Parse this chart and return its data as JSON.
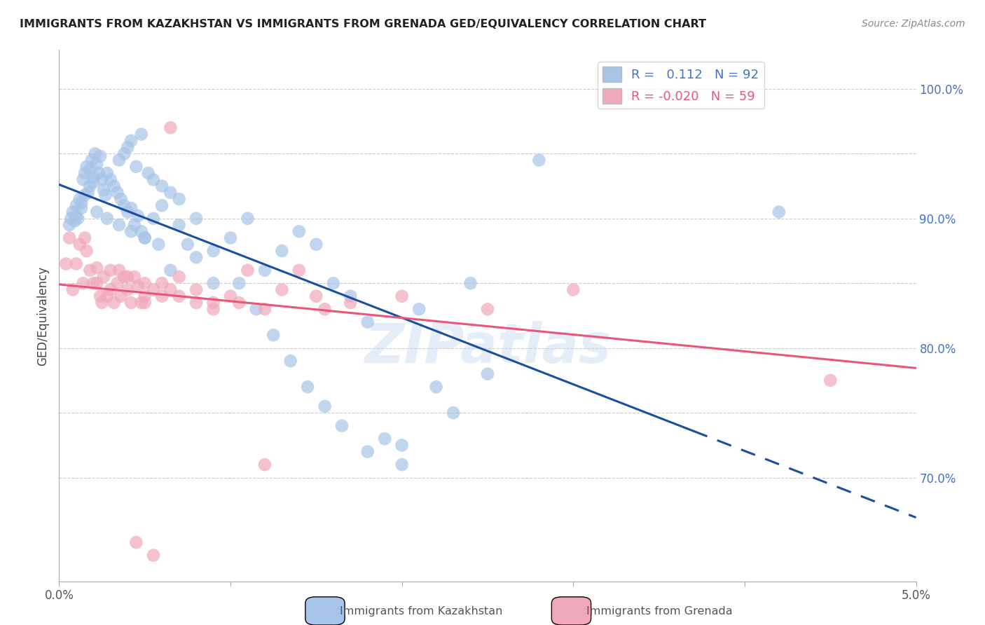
{
  "title": "IMMIGRANTS FROM KAZAKHSTAN VS IMMIGRANTS FROM GRENADA GED/EQUIVALENCY CORRELATION CHART",
  "source": "Source: ZipAtlas.com",
  "ylabel": "GED/Equivalency",
  "watermark": "ZIPatlas",
  "blue_color": "#a8c4e8",
  "pink_color": "#f0a8bb",
  "blue_line_color": "#1a4fa0",
  "pink_line_color": "#e8567a",
  "background_color": "#ffffff",
  "R_blue": 0.112,
  "N_blue": 92,
  "R_pink": -0.02,
  "N_pink": 59,
  "xmin": 0.0,
  "xmax": 5.0,
  "ymin": 62.0,
  "ymax": 103.0,
  "blue_scatter_x": [
    0.06,
    0.07,
    0.08,
    0.09,
    0.1,
    0.1,
    0.11,
    0.12,
    0.13,
    0.13,
    0.14,
    0.15,
    0.15,
    0.16,
    0.17,
    0.18,
    0.18,
    0.19,
    0.2,
    0.2,
    0.21,
    0.22,
    0.23,
    0.24,
    0.25,
    0.26,
    0.27,
    0.28,
    0.3,
    0.32,
    0.34,
    0.36,
    0.38,
    0.4,
    0.42,
    0.44,
    0.46,
    0.48,
    0.5,
    0.55,
    0.6,
    0.65,
    0.7,
    0.75,
    0.8,
    0.9,
    1.0,
    1.1,
    1.2,
    1.3,
    1.4,
    1.5,
    1.6,
    1.7,
    1.8,
    1.9,
    2.0,
    2.1,
    2.2,
    2.3,
    2.4,
    2.5,
    0.35,
    0.38,
    0.4,
    0.42,
    0.45,
    0.48,
    0.52,
    0.55,
    0.6,
    0.65,
    0.7,
    0.8,
    0.9,
    1.05,
    1.15,
    1.25,
    1.35,
    1.45,
    1.55,
    1.65,
    1.8,
    2.0,
    2.8,
    4.2,
    0.22,
    0.28,
    0.35,
    0.42,
    0.5,
    0.58
  ],
  "blue_scatter_y": [
    89.5,
    90.0,
    90.5,
    89.8,
    91.0,
    90.2,
    90.0,
    91.5,
    90.8,
    91.2,
    93.0,
    91.8,
    93.5,
    94.0,
    92.0,
    92.5,
    93.8,
    94.5,
    92.8,
    93.2,
    95.0,
    94.2,
    93.5,
    94.8,
    93.0,
    92.2,
    91.8,
    93.5,
    93.0,
    92.5,
    92.0,
    91.5,
    91.0,
    90.5,
    90.8,
    89.5,
    90.2,
    89.0,
    88.5,
    90.0,
    91.0,
    86.0,
    89.5,
    88.0,
    87.0,
    85.0,
    88.5,
    90.0,
    86.0,
    87.5,
    89.0,
    88.0,
    85.0,
    84.0,
    82.0,
    73.0,
    72.5,
    83.0,
    77.0,
    75.0,
    85.0,
    78.0,
    94.5,
    95.0,
    95.5,
    96.0,
    94.0,
    96.5,
    93.5,
    93.0,
    92.5,
    92.0,
    91.5,
    90.0,
    87.5,
    85.0,
    83.0,
    81.0,
    79.0,
    77.0,
    75.5,
    74.0,
    72.0,
    71.0,
    94.5,
    90.5,
    90.5,
    90.0,
    89.5,
    89.0,
    88.5,
    88.0
  ],
  "pink_scatter_x": [
    0.04,
    0.06,
    0.08,
    0.1,
    0.12,
    0.14,
    0.16,
    0.18,
    0.2,
    0.22,
    0.24,
    0.26,
    0.28,
    0.3,
    0.32,
    0.34,
    0.36,
    0.38,
    0.4,
    0.42,
    0.44,
    0.46,
    0.48,
    0.5,
    0.55,
    0.6,
    0.65,
    0.7,
    0.8,
    0.9,
    1.0,
    1.1,
    1.2,
    1.3,
    1.5,
    1.7,
    2.0,
    2.5,
    3.0,
    4.5,
    0.15,
    0.22,
    0.3,
    0.4,
    0.5,
    0.6,
    0.7,
    0.8,
    0.9,
    1.05,
    1.2,
    1.4,
    1.55,
    0.25,
    0.35,
    0.45,
    0.55,
    0.65,
    0.5
  ],
  "pink_scatter_y": [
    86.5,
    88.5,
    84.5,
    86.5,
    88.0,
    85.0,
    87.5,
    86.0,
    85.0,
    86.2,
    84.0,
    85.5,
    84.0,
    86.0,
    83.5,
    85.0,
    84.0,
    85.5,
    84.5,
    83.5,
    85.5,
    84.8,
    83.5,
    85.0,
    84.5,
    84.0,
    84.5,
    85.5,
    83.5,
    83.0,
    84.0,
    86.0,
    83.0,
    84.5,
    84.0,
    83.5,
    84.0,
    83.0,
    84.5,
    77.5,
    88.5,
    85.0,
    84.5,
    85.5,
    83.5,
    85.0,
    84.0,
    84.5,
    83.5,
    83.5,
    71.0,
    86.0,
    83.0,
    83.5,
    86.0,
    65.0,
    64.0,
    97.0,
    84.0
  ]
}
